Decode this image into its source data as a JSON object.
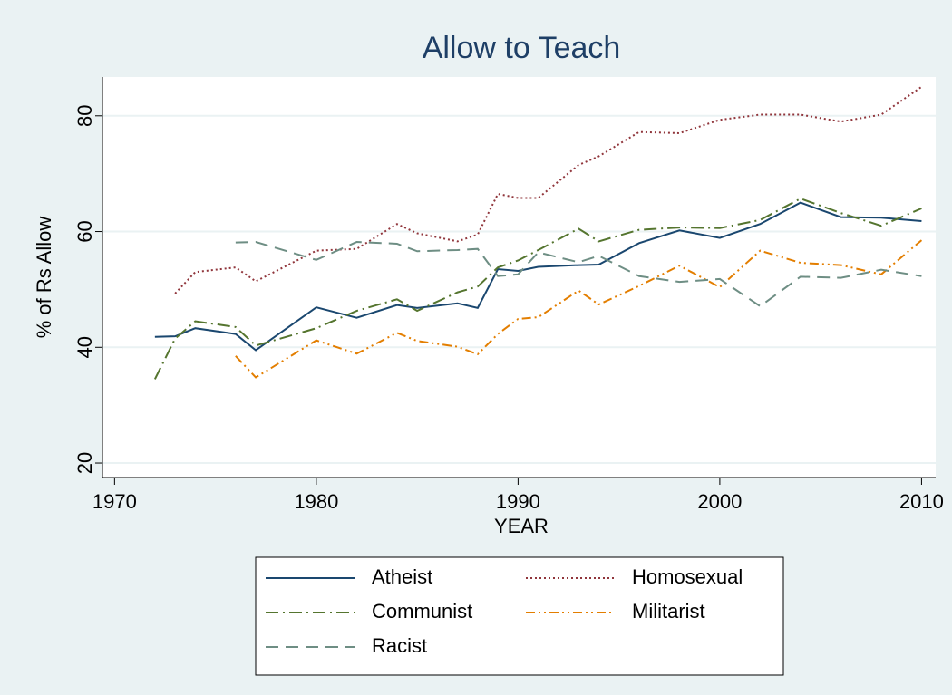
{
  "chart_data": {
    "type": "line",
    "title": "Allow to Teach",
    "xlabel": "YEAR",
    "ylabel": "% of Rs Allow",
    "xlim": [
      1969.4,
      2010.7
    ],
    "xticks": [
      1970,
      1980,
      1990,
      2000,
      2010
    ],
    "ylim": [
      17.5,
      86.7
    ],
    "yticks": [
      20,
      40,
      60,
      80
    ],
    "grid": true,
    "legend": "bottom",
    "series": [
      {
        "name": "Atheist",
        "color": "#1a476f",
        "dash": "solid",
        "x": [
          1972,
          1973,
          1974,
          1976,
          1977,
          1980,
          1982,
          1984,
          1985,
          1987,
          1988,
          1989,
          1990,
          1991,
          1993,
          1994,
          1996,
          1998,
          2000,
          2002,
          2004,
          2006,
          2008,
          2010
        ],
        "values": [
          41.8,
          41.9,
          43.3,
          42.3,
          39.5,
          46.9,
          45.1,
          47.3,
          46.8,
          47.6,
          46.8,
          53.5,
          53.2,
          53.9,
          54.2,
          54.3,
          58,
          60.2,
          58.9,
          61.3,
          65,
          62.5,
          62.4,
          61.8
        ]
      },
      {
        "name": "Homosexual",
        "color": "#90353b",
        "dash": "dot",
        "x": [
          1973,
          1974,
          1976,
          1977,
          1980,
          1982,
          1984,
          1985,
          1987,
          1988,
          1989,
          1990,
          1991,
          1993,
          1994,
          1996,
          1998,
          2000,
          2002,
          2004,
          2006,
          2008,
          2010
        ],
        "values": [
          49.3,
          53,
          53.8,
          51.4,
          56.7,
          57,
          61.3,
          59.7,
          58.3,
          59.5,
          66.5,
          65.8,
          65.8,
          71.5,
          73,
          77.2,
          77,
          79.3,
          80.2,
          80.2,
          79,
          80.2,
          85
        ]
      },
      {
        "name": "Communist",
        "color": "#55752f",
        "dash": "dashdot",
        "x": [
          1972,
          1973,
          1974,
          1976,
          1977,
          1980,
          1982,
          1984,
          1985,
          1987,
          1988,
          1989,
          1990,
          1991,
          1993,
          1994,
          1996,
          1998,
          2000,
          2002,
          2004,
          2006,
          2008,
          2010
        ],
        "values": [
          34.5,
          41.5,
          44.5,
          43.5,
          40.3,
          43.3,
          46.3,
          48.3,
          46.3,
          49.5,
          50.5,
          53.8,
          55,
          56.8,
          60.5,
          58.3,
          60.3,
          60.7,
          60.6,
          62,
          65.7,
          63.2,
          61,
          64
        ]
      },
      {
        "name": "Militarist",
        "color": "#e37e00",
        "dash": "dashdotdot",
        "x": [
          1976,
          1977,
          1980,
          1982,
          1984,
          1985,
          1987,
          1988,
          1989,
          1990,
          1991,
          1993,
          1994,
          1996,
          1998,
          2000,
          2002,
          2004,
          2006,
          2008,
          2010
        ],
        "values": [
          38.5,
          34.8,
          41.2,
          38.9,
          42.5,
          41.1,
          40.1,
          38.8,
          42.3,
          44.9,
          45.2,
          49.8,
          47.4,
          50.6,
          54.1,
          50.4,
          56.7,
          54.6,
          54.2,
          52.6,
          58.5
        ]
      },
      {
        "name": "Racist",
        "color": "#6e8e84",
        "dash": "dash",
        "x": [
          1976,
          1977,
          1980,
          1982,
          1984,
          1985,
          1987,
          1988,
          1989,
          1990,
          1991,
          1993,
          1994,
          1996,
          1998,
          2000,
          2002,
          2004,
          2006,
          2008,
          2010
        ],
        "values": [
          58.1,
          58.2,
          55.1,
          58.2,
          57.9,
          56.6,
          56.8,
          57,
          52.3,
          52.6,
          56.4,
          54.7,
          55.8,
          52.3,
          51.3,
          51.8,
          47.1,
          52.2,
          52,
          53.4,
          52.3
        ]
      }
    ]
  }
}
